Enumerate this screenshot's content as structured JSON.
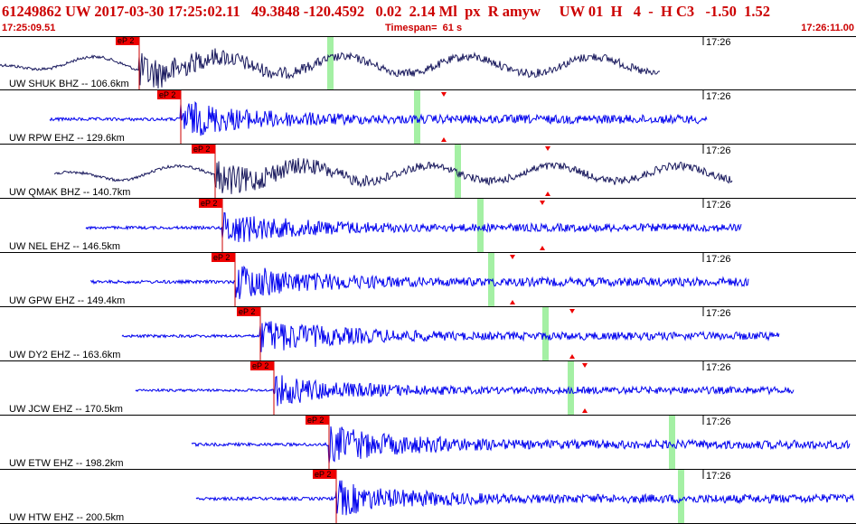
{
  "header": {
    "title": "61249862 UW 2017-03-30 17:25:02.11   49.3848 -120.4592   0.02  2.14 Ml  px  R amyw     UW 01  H   4  -  H C3   -1.50  1.52",
    "start_time": "17:25:09.51",
    "timespan": "Timespan=  61 s",
    "end_time": "17:26:11.00"
  },
  "colors": {
    "title_text": "#cc0000",
    "trace_blue": "#0000ee",
    "trace_dark": "#1a1a5e",
    "pick_flag": "#ee0000",
    "s_window": "#a4f0a4",
    "triangle": "#ee0000",
    "separator": "#000000"
  },
  "time_tick_label": "17:26",
  "traces": [
    {
      "label": "UW SHUK BHZ -- 106.6km",
      "pick": "eP 2",
      "style": "dark"
    },
    {
      "label": "UW RPW EHZ -- 129.6km",
      "pick": "eP 2",
      "style": "blue"
    },
    {
      "label": "UW QMAK BHZ -- 140.7km",
      "pick": "eP 2",
      "style": "dark"
    },
    {
      "label": "UW NEL EHZ -- 146.5km",
      "pick": "eP 2",
      "style": "blue"
    },
    {
      "label": "UW GPW EHZ -- 149.4km",
      "pick": "eP 2",
      "style": "blue"
    },
    {
      "label": "UW DY2 EHZ -- 163.6km",
      "pick": "eP 2",
      "style": "blue"
    },
    {
      "label": "UW JCW EHZ -- 170.5km",
      "pick": "eP 2",
      "style": "blue"
    },
    {
      "label": "UW ETW EHZ -- 198.2km",
      "pick": "eP 2",
      "style": "blue"
    },
    {
      "label": "UW HTW EHZ -- 200.5km",
      "pick": "eP 2",
      "style": "blue"
    }
  ]
}
